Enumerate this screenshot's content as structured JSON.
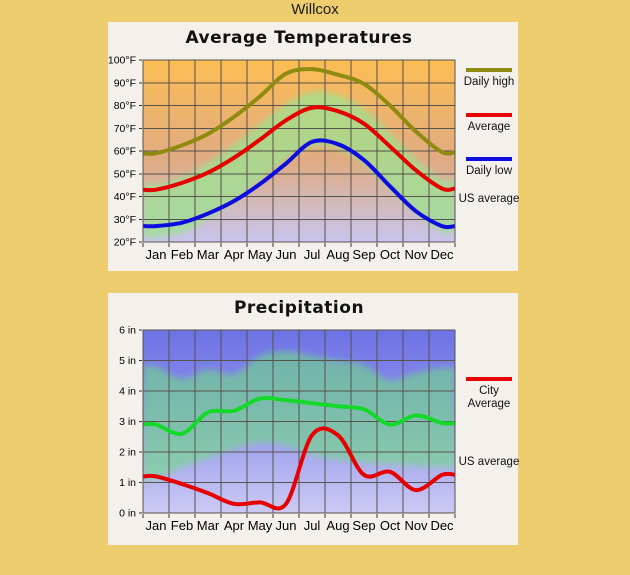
{
  "page": {
    "title": "Willcox",
    "background": "#eecd6e"
  },
  "temperature": {
    "title": "Average Temperatures",
    "legend": {
      "daily_high": "Daily high",
      "average": "Average",
      "daily_low": "Daily low",
      "us_average": "US average"
    }
  },
  "precipitation": {
    "title": "Precipitation",
    "legend": {
      "city_line1": "City",
      "city_line2": "Average",
      "us_average": "US average"
    }
  },
  "chart_data": [
    {
      "type": "line",
      "title": "Average Temperatures",
      "categories": [
        "Jan",
        "Feb",
        "Mar",
        "Apr",
        "May",
        "Jun",
        "Jul",
        "Aug",
        "Sep",
        "Oct",
        "Nov",
        "Dec"
      ],
      "ylim": [
        20,
        100
      ],
      "ytick_step": 10,
      "y_tick_labels": [
        "20°F",
        "30°F",
        "40°F",
        "50°F",
        "60°F",
        "70°F",
        "80°F",
        "90°F",
        "100°F"
      ],
      "grid": true,
      "legend_position": "right",
      "series": [
        {
          "name": "Daily high",
          "color": "#8f8a10",
          "values": [
            59,
            62.5,
            67.5,
            75,
            84,
            94,
            96,
            93.5,
            89.5,
            80,
            68.5,
            59.5
          ]
        },
        {
          "name": "Average",
          "color": "#e60000",
          "values": [
            43,
            46,
            50.5,
            57,
            65,
            73.5,
            79,
            77.5,
            72,
            62,
            51.5,
            43.5
          ]
        },
        {
          "name": "Daily low",
          "color": "#0d0de0",
          "values": [
            27,
            28.5,
            32.5,
            38,
            45.5,
            54.5,
            64,
            63,
            56,
            44.5,
            33.5,
            27
          ]
        }
      ],
      "band": {
        "name": "US average",
        "color": "#9ce290",
        "low": [
          22,
          24,
          30,
          38,
          47,
          56,
          62,
          61,
          54,
          43,
          32.5,
          24.5
        ],
        "high": [
          45.5,
          48.5,
          55,
          63,
          72,
          80.5,
          86,
          84.5,
          78.5,
          68,
          56.5,
          47.5
        ]
      },
      "background_gradient": [
        "#fcbd53",
        "#e0ab82",
        "#c7c5ee"
      ]
    },
    {
      "type": "line",
      "title": "Precipitation",
      "categories": [
        "Jan",
        "Feb",
        "Mar",
        "Apr",
        "May",
        "Jun",
        "Jul",
        "Aug",
        "Sep",
        "Oct",
        "Nov",
        "Dec"
      ],
      "ylim": [
        0,
        6
      ],
      "ytick_step": 1,
      "y_tick_labels": [
        "0 in",
        "1 in",
        "2 in",
        "3 in",
        "4 in",
        "5 in",
        "6 in"
      ],
      "grid": true,
      "legend_position": "right",
      "series": [
        {
          "name": "US average",
          "color": "#15d92a",
          "values": [
            2.9,
            2.6,
            3.3,
            3.35,
            3.75,
            3.7,
            3.6,
            3.5,
            3.4,
            2.9,
            3.2,
            2.95
          ]
        },
        {
          "name": "City Average",
          "color": "#e60000",
          "values": [
            1.2,
            0.95,
            0.65,
            0.3,
            0.35,
            0.3,
            2.55,
            2.55,
            1.25,
            1.35,
            0.75,
            1.25
          ]
        }
      ],
      "band": {
        "name": "US average range",
        "color": "#6edc7e",
        "low": [
          1.1,
          1.5,
          1.8,
          2.1,
          2.3,
          2.2,
          1.9,
          1.75,
          1.65,
          1.6,
          1.55,
          1.5
        ],
        "high": [
          4.8,
          4.4,
          4.7,
          4.55,
          5.15,
          5.3,
          5.15,
          5.0,
          4.85,
          4.35,
          4.6,
          4.75
        ]
      },
      "background_gradient": [
        "#6d72e6",
        "#9194ec",
        "#cccaf3"
      ]
    }
  ]
}
